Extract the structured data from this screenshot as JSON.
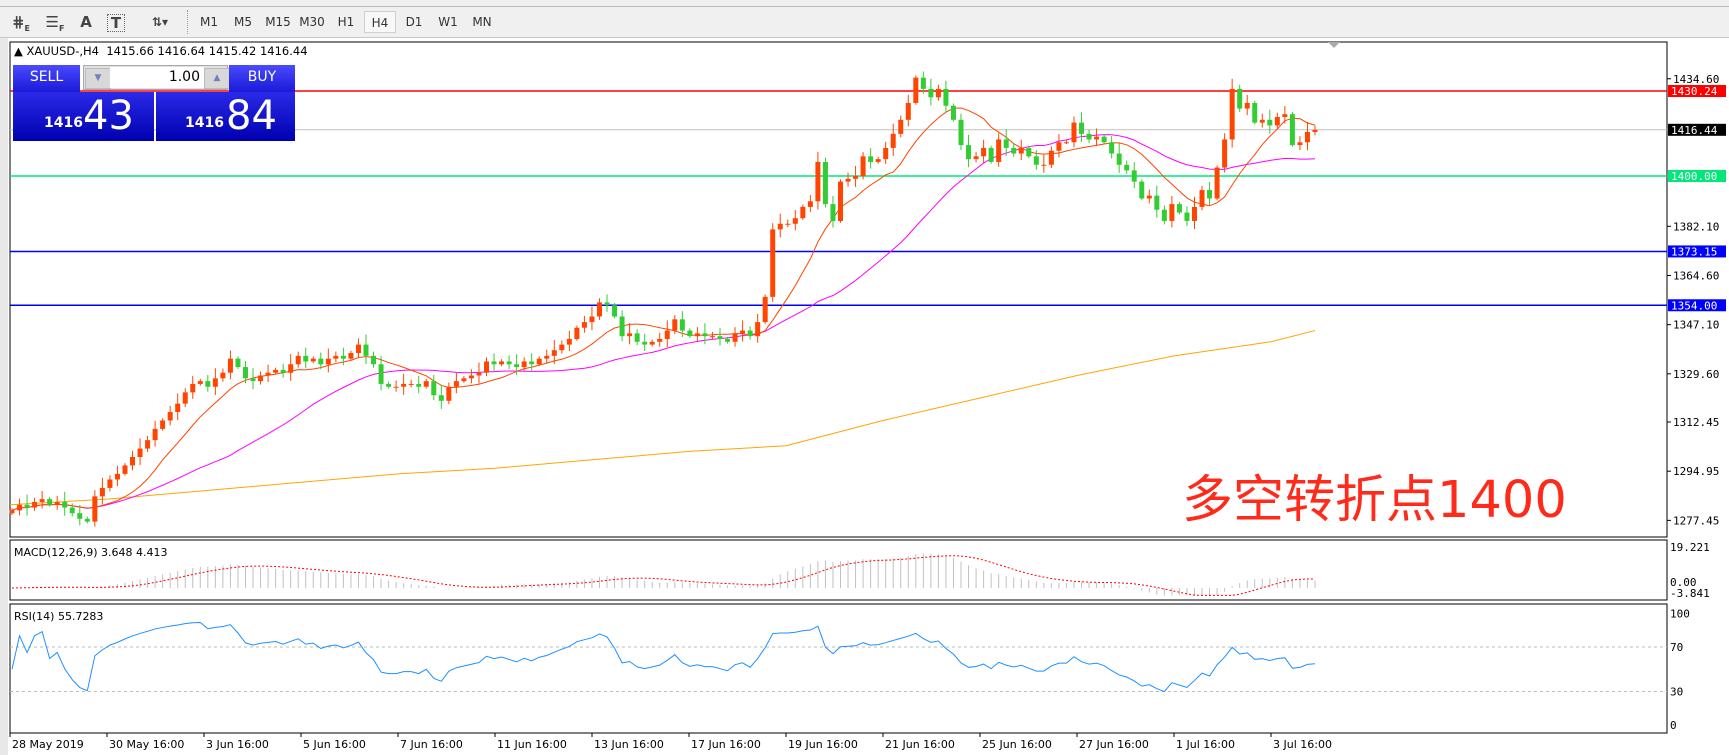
{
  "toolbar": {
    "tools": [
      {
        "icon": "fibonacci-fan-icon",
        "label": "E"
      },
      {
        "icon": "fibonacci-retracement-icon",
        "label": "F"
      },
      {
        "icon": "text-icon",
        "label": "A"
      },
      {
        "icon": "text-label-icon",
        "label": "T"
      },
      {
        "icon": "arrows-dropdown-icon",
        "label": "▾"
      }
    ],
    "timeframes": [
      "M1",
      "M5",
      "M15",
      "M30",
      "H1",
      "H4",
      "D1",
      "W1",
      "MN"
    ],
    "selected_timeframe": "H4"
  },
  "chart_header": {
    "symbol": "XAUUSD-,H4",
    "ohlc": "1415.66 1416.64 1415.42 1416.44"
  },
  "trade_panel": {
    "sell_label": "SELL",
    "buy_label": "BUY",
    "volume": "1.00",
    "sell_price_prefix": "1416",
    "sell_price_main": "43",
    "buy_price_prefix": "1416",
    "buy_price_main": "84",
    "color": "#1a1ad8"
  },
  "annotation": "多空转折点1400",
  "chart_data": [
    {
      "type": "candlestick",
      "symbol": "XAUUSD-",
      "timeframe": "H4",
      "bull_color": "#ff4500",
      "bear_color": "#32cd32",
      "price_axis_ticks": [
        "1434.60",
        "1382.10",
        "1364.60",
        "1347.10",
        "1329.60",
        "1312.45",
        "1294.95",
        "1277.45"
      ],
      "x_tick_labels": [
        "28 May 2019",
        "30 May 16:00",
        "3 Jun 16:00",
        "5 Jun 16:00",
        "7 Jun 16:00",
        "11 Jun 16:00",
        "13 Jun 16:00",
        "17 Jun 16:00",
        "19 Jun 16:00",
        "21 Jun 16:00",
        "25 Jun 16:00",
        "27 Jun 16:00",
        "1 Jul 16:00",
        "3 Jul 16:00"
      ],
      "close": [
        1281,
        1283,
        1282,
        1284,
        1285,
        1283,
        1284,
        1282,
        1280,
        1278,
        1277,
        1286,
        1289,
        1292,
        1294,
        1297,
        1300,
        1303,
        1306,
        1310,
        1313,
        1316,
        1319,
        1323,
        1326,
        1327,
        1325,
        1328,
        1330,
        1335,
        1332,
        1328,
        1327,
        1329,
        1330,
        1331,
        1330,
        1333,
        1336,
        1334,
        1335,
        1333,
        1335,
        1336,
        1335,
        1337,
        1340,
        1336,
        1333,
        1326,
        1325,
        1325,
        1326,
        1326,
        1325,
        1327,
        1322,
        1320,
        1325,
        1327,
        1328,
        1329,
        1330,
        1334,
        1333,
        1334,
        1333,
        1332,
        1334,
        1333,
        1335,
        1336,
        1338,
        1340,
        1342,
        1346,
        1348,
        1350,
        1355,
        1354,
        1350,
        1343,
        1344,
        1341,
        1340,
        1341,
        1342,
        1345,
        1349,
        1345,
        1343,
        1344,
        1343,
        1343,
        1342,
        1341,
        1344,
        1345,
        1343,
        1348,
        1357,
        1381,
        1383,
        1383,
        1385,
        1389,
        1391,
        1405,
        1390,
        1384,
        1398,
        1399,
        1400,
        1407,
        1405,
        1406,
        1410,
        1415,
        1420,
        1426,
        1435,
        1431,
        1428,
        1431,
        1425,
        1420,
        1411,
        1406,
        1407,
        1410,
        1405,
        1413,
        1410,
        1408,
        1410,
        1407,
        1404,
        1404,
        1409,
        1412,
        1412,
        1419,
        1415,
        1413,
        1414,
        1412,
        1408,
        1404,
        1402,
        1398,
        1392,
        1393,
        1388,
        1384,
        1390,
        1387,
        1384,
        1389,
        1395,
        1392,
        1403,
        1413,
        1431,
        1424,
        1426,
        1419,
        1420,
        1418,
        1421,
        1422,
        1411,
        1412,
        1415.66,
        1416.44
      ],
      "slow_ma_at_x_ticks": [
        1283,
        1285,
        1288,
        1291,
        1294,
        1296,
        1299,
        1302,
        1304,
        1313,
        1321,
        1329,
        1336,
        1341
      ],
      "slow_ma_last": 1345,
      "colors": {
        "fast_ma": "#ff4500",
        "mid_ma": "#ff00ff",
        "slow_ma": "#ffa500"
      },
      "levels": [
        {
          "value": 1430.24,
          "label": "1430.24",
          "color": "#ff0000"
        },
        {
          "value": 1416.44,
          "label": "1416.44",
          "color": "#000000",
          "line_color": "#c0c0c0"
        },
        {
          "value": 1400.0,
          "label": "1400.00",
          "color": "#00e87a"
        },
        {
          "value": 1373.15,
          "label": "1373.15",
          "color": "#0000ff"
        },
        {
          "value": 1354.0,
          "label": "1354.00",
          "color": "#0000ff"
        }
      ]
    },
    {
      "type": "bar",
      "title": "MACD(12,26,9) 3.648 4.413",
      "axis_labels": [
        "19.221",
        "0.00",
        "-3.841"
      ],
      "ylim": [
        -3.841,
        19.221
      ],
      "histogram_color": "#c0c0c0",
      "signal_color": "#ff0000"
    },
    {
      "type": "line",
      "title": "RSI(14) 55.7283",
      "axis_labels": [
        "100",
        "70",
        "30",
        "0"
      ],
      "ylim": [
        0,
        100
      ],
      "levels": [
        70,
        30
      ],
      "color": "#1e90ff"
    }
  ]
}
